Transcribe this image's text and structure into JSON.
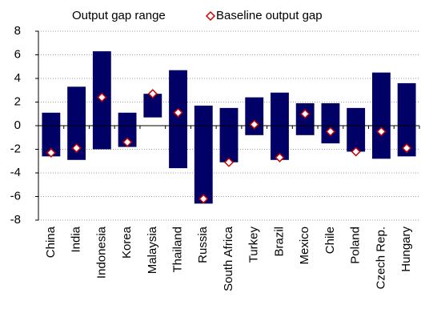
{
  "chart_data": {
    "type": "range-bar",
    "categories": [
      "China",
      "India",
      "Indonesia",
      "Korea",
      "Malaysia",
      "Thailand",
      "Russia",
      "South Africa",
      "Turkey",
      "Brazil",
      "Mexico",
      "Chile",
      "Poland",
      "Czech Rep.",
      "Hungary"
    ],
    "series": [
      {
        "name": "Output gap range",
        "color": "#000066",
        "low": [
          -2.6,
          -2.9,
          -2.0,
          -1.8,
          0.7,
          -3.6,
          -6.6,
          -3.1,
          -0.8,
          -2.9,
          -0.8,
          -1.5,
          -2.2,
          -2.8,
          -2.6
        ],
        "high": [
          1.1,
          3.3,
          6.3,
          1.1,
          2.7,
          4.7,
          1.7,
          1.5,
          2.4,
          2.8,
          1.9,
          1.9,
          1.5,
          4.5,
          3.6
        ]
      },
      {
        "name": "Baseline output gap",
        "color": "#cc0000",
        "values": [
          -2.3,
          -1.9,
          2.4,
          -1.4,
          2.7,
          1.1,
          -6.2,
          -3.1,
          0.1,
          -2.7,
          1.0,
          -0.5,
          -2.2,
          -0.5,
          -1.9
        ]
      }
    ],
    "ylim": [
      -8,
      8
    ],
    "yticks": [
      -8,
      -6,
      -4,
      -2,
      0,
      2,
      4,
      6,
      8
    ],
    "grid": true
  }
}
